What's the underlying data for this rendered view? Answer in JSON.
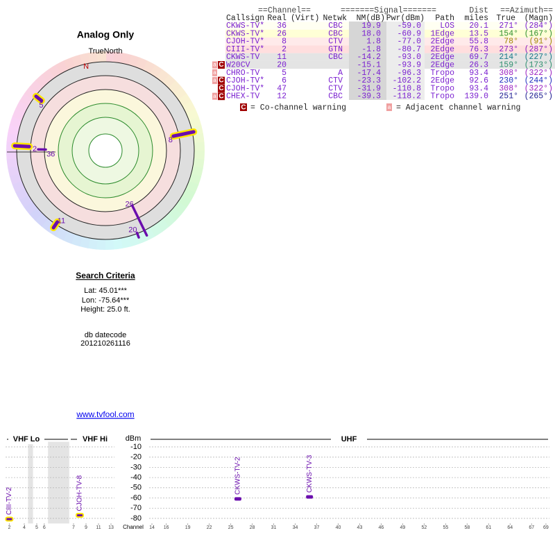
{
  "header": {
    "title": "Analog Only"
  },
  "polar": {
    "north_label": "TrueNorth",
    "magnetic_north": "N",
    "markers": [
      {
        "label": "5",
        "azimuth": 308
      },
      {
        "label": "8",
        "azimuth": 78
      },
      {
        "label": "2",
        "azimuth": 273
      },
      {
        "label": "36",
        "azimuth": 271
      },
      {
        "label": "11",
        "azimuth": 214
      },
      {
        "label": "26",
        "azimuth": 154
      },
      {
        "label": "20",
        "azimuth": 159
      }
    ]
  },
  "search": {
    "heading": "Search Criteria",
    "lat": "Lat: 45.01***",
    "lon": "Lon: -75.64***",
    "height": "Height: 25.0 ft.",
    "datecode_label": "db datecode",
    "datecode": "201210261116"
  },
  "link": "www.tvfool.com",
  "table": {
    "group_headers": [
      "==Channel==",
      "=======Signal=======",
      "Dist",
      "==Azimuth=="
    ],
    "columns": [
      "Callsign",
      "Real",
      "(Virt)",
      "Netwk",
      "NM(dB)",
      "Pwr(dBm)",
      "Path",
      "miles",
      "True",
      "(Magn)"
    ],
    "rows": [
      {
        "callsign": "CKWS-TV*",
        "real": "36",
        "netwk": "CBC",
        "nm": "19.9",
        "pwr": "-59.0",
        "path": "LOS",
        "dist": "20.1",
        "az_true": "271°",
        "az_magn": "(284°)",
        "az_color": "#7a1fd0"
      },
      {
        "callsign": "CKWS-TV*",
        "real": "26",
        "netwk": "CBC",
        "nm": "18.0",
        "pwr": "-60.9",
        "path": "1Edge",
        "dist": "13.5",
        "az_true": "154°",
        "az_magn": "(167°)",
        "az_color": "#2f8f2f"
      },
      {
        "callsign": "CJOH-TV*",
        "real": "8",
        "netwk": "CTV",
        "nm": "1.8",
        "pwr": "-77.0",
        "path": "2Edge",
        "dist": "55.8",
        "az_true": "78°",
        "az_magn": "(91°)",
        "az_color": "#a08a00"
      },
      {
        "callsign": "CIII-TV*",
        "real": "2",
        "netwk": "GTN",
        "nm": "-1.8",
        "pwr": "-80.7",
        "path": "2Edge",
        "dist": "76.3",
        "az_true": "273°",
        "az_magn": "(287°)",
        "az_color": "#8a1fc0"
      },
      {
        "callsign": "CKWS-TV",
        "real": "11",
        "netwk": "CBC",
        "nm": "-14.2",
        "pwr": "-93.0",
        "path": "2Edge",
        "dist": "69.7",
        "az_true": "214°",
        "az_magn": "(227°)",
        "az_color": "#1a7a8a"
      },
      {
        "adj": "a",
        "co": "C",
        "callsign": "W20CV",
        "real": "20",
        "nm": "-15.1",
        "pwr": "-93.9",
        "path": "2Edge",
        "dist": "26.3",
        "az_true": "159°",
        "az_magn": "(173°)",
        "az_color": "#2f8f6f"
      },
      {
        "adj": "a",
        "callsign": "CHRO-TV",
        "real": "5",
        "netwk": "A",
        "nm": "-17.4",
        "pwr": "-96.3",
        "path": "Tropo",
        "dist": "93.4",
        "az_true": "308°",
        "az_magn": "(322°)",
        "az_color": "#9a1fc0"
      },
      {
        "adj": "a",
        "co": "C",
        "callsign": "CJOH-TV*",
        "real": "6",
        "netwk": "CTV",
        "nm": "-23.3",
        "pwr": "-102.2",
        "path": "2Edge",
        "dist": "92.6",
        "az_true": "230°",
        "az_magn": "(244°)",
        "az_color": "#2030c0"
      },
      {
        "co": "C",
        "callsign": "CJOH-TV*",
        "real": "47",
        "netwk": "CTV",
        "nm": "-31.9",
        "pwr": "-110.8",
        "path": "Tropo",
        "dist": "93.4",
        "az_true": "308°",
        "az_magn": "(322°)",
        "az_color": "#9a1fc0"
      },
      {
        "adj": "a",
        "co": "C",
        "callsign": "CHEX-TV",
        "real": "12",
        "netwk": "CBC",
        "nm": "-39.3",
        "pwr": "-118.2",
        "path": "Tropo",
        "dist": "139.0",
        "az_true": "251°",
        "az_magn": "(265°)",
        "az_color": "#1a1a90"
      }
    ]
  },
  "legend": {
    "co_icon": "C",
    "co_text": "= Co-channel warning",
    "adj_icon": "a",
    "adj_text": "= Adjacent channel warning"
  },
  "chart_data": {
    "type": "scatter",
    "y_label": "dBm",
    "x_label": "Channel",
    "sections": [
      "VHF Lo",
      "VHF Hi",
      "UHF"
    ],
    "x": [
      2,
      8,
      26,
      36
    ],
    "values": [
      -80.7,
      -77.0,
      -60.9,
      -59.0
    ],
    "point_labels": [
      "CIII-TV-2",
      "CJOH-TV-8",
      "CKWS-TV-2",
      "CKWS-TV-3"
    ],
    "highlight": [
      true,
      true,
      false,
      false
    ],
    "color": "#6a0dad",
    "highlight_color": "#ffe600",
    "ylim": [
      -85,
      -5
    ],
    "yticks": [
      -10,
      -20,
      -30,
      -40,
      -50,
      -60,
      -70,
      -80
    ],
    "xticks": [
      2,
      4,
      5,
      6,
      7,
      9,
      11,
      13,
      14,
      16,
      19,
      22,
      25,
      28,
      31,
      34,
      37,
      40,
      43,
      46,
      49,
      52,
      55,
      58,
      61,
      64,
      67,
      69
    ],
    "grid": true
  }
}
